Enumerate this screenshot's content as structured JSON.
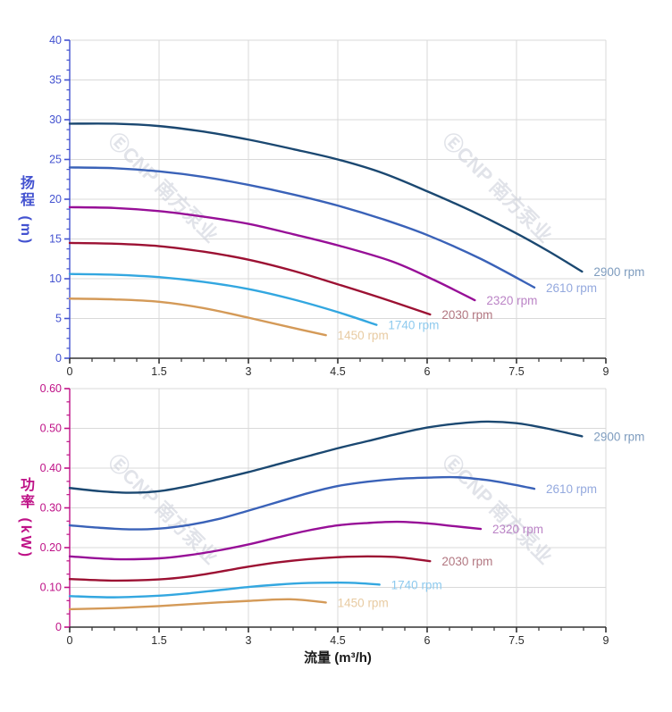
{
  "colors": {
    "grid": "#d9d9d9",
    "x_axis": "#333333",
    "x_tick_label": "#2b2b2b"
  },
  "watermark": {
    "text": "ⒺCNP 南方泵业",
    "color": "#c9cdd8",
    "positions": [
      [
        [
          120,
          158
        ],
        [
          494,
          158
        ]
      ],
      [
        [
          120,
          518
        ],
        [
          494,
          518
        ]
      ]
    ]
  },
  "chart_data": [
    {
      "type": "line",
      "title": "",
      "ylabel": "扬程 (m)",
      "xlim": [
        0,
        9
      ],
      "ylim": [
        0,
        40
      ],
      "x_ticks": [
        0,
        1.5,
        3,
        4.5,
        6,
        7.5,
        9
      ],
      "x_minor_step": 0.375,
      "y_ticks": [
        0,
        5,
        10,
        15,
        20,
        25,
        30,
        35,
        40
      ],
      "y_minor_step": 1.25,
      "y_decimals": 0,
      "axis_color": "#4352d0",
      "grid": true,
      "legend_position": "curve-ends",
      "series": [
        {
          "name": "2900 rpm",
          "color": "#1b4871",
          "label_color": "#7e9cbe",
          "points": [
            [
              0,
              29.5
            ],
            [
              0.75,
              29.5
            ],
            [
              1.5,
              29.2
            ],
            [
              2.25,
              28.5
            ],
            [
              3,
              27.5
            ],
            [
              3.75,
              26.3
            ],
            [
              4.5,
              25
            ],
            [
              5.25,
              23.3
            ],
            [
              6,
              21
            ],
            [
              6.75,
              18.5
            ],
            [
              7.5,
              15.7
            ],
            [
              8.05,
              13.4
            ],
            [
              8.6,
              10.9
            ]
          ]
        },
        {
          "name": "2610 rpm",
          "color": "#3a62b8",
          "label_color": "#94a9de",
          "points": [
            [
              0,
              24
            ],
            [
              0.75,
              23.9
            ],
            [
              1.5,
              23.5
            ],
            [
              2.25,
              22.8
            ],
            [
              3,
              21.8
            ],
            [
              3.75,
              20.6
            ],
            [
              4.5,
              19.2
            ],
            [
              5.25,
              17.5
            ],
            [
              6,
              15.5
            ],
            [
              6.9,
              12.5
            ],
            [
              7.8,
              8.9
            ]
          ]
        },
        {
          "name": "2320 rpm",
          "color": "#970f97",
          "label_color": "#bb84c6",
          "points": [
            [
              0,
              19
            ],
            [
              0.75,
              18.9
            ],
            [
              1.5,
              18.5
            ],
            [
              2.25,
              17.8
            ],
            [
              3,
              16.9
            ],
            [
              3.75,
              15.6
            ],
            [
              4.5,
              14.2
            ],
            [
              5.4,
              12.2
            ],
            [
              6.1,
              9.9
            ],
            [
              6.8,
              7.3
            ]
          ]
        },
        {
          "name": "2030 rpm",
          "color": "#9c1133",
          "label_color": "#b27781",
          "points": [
            [
              0,
              14.5
            ],
            [
              0.75,
              14.4
            ],
            [
              1.5,
              14.1
            ],
            [
              2.25,
              13.4
            ],
            [
              3,
              12.4
            ],
            [
              3.75,
              11
            ],
            [
              4.5,
              9.3
            ],
            [
              5.3,
              7.4
            ],
            [
              6.05,
              5.5
            ]
          ]
        },
        {
          "name": "1740 rpm",
          "color": "#33a7e0",
          "label_color": "#8ecaee",
          "points": [
            [
              0,
              10.6
            ],
            [
              0.75,
              10.5
            ],
            [
              1.5,
              10.2
            ],
            [
              2.25,
              9.6
            ],
            [
              3,
              8.7
            ],
            [
              3.75,
              7.4
            ],
            [
              4.5,
              5.8
            ],
            [
              5.15,
              4.2
            ]
          ]
        },
        {
          "name": "1450 rpm",
          "color": "#d49a58",
          "label_color": "#e8cba2",
          "points": [
            [
              0,
              7.5
            ],
            [
              0.75,
              7.4
            ],
            [
              1.5,
              7.1
            ],
            [
              2.25,
              6.3
            ],
            [
              3,
              5.1
            ],
            [
              3.7,
              3.9
            ],
            [
              4.3,
              2.9
            ]
          ]
        }
      ]
    },
    {
      "type": "line",
      "title": "",
      "ylabel": "功率 (kW)",
      "xlabel": "流量 (m³/h)",
      "xlim": [
        0,
        9
      ],
      "ylim": [
        0,
        0.6
      ],
      "x_ticks": [
        0,
        1.5,
        3,
        4.5,
        6,
        7.5,
        9
      ],
      "x_minor_step": 0.375,
      "y_ticks": [
        0,
        0.1,
        0.2,
        0.3,
        0.4,
        0.5,
        0.6
      ],
      "y_minor_step": 0.0333333,
      "y_decimals": 2,
      "axis_color": "#bf1287",
      "grid": true,
      "legend_position": "curve-ends",
      "series": [
        {
          "name": "2900 rpm",
          "color": "#1b4871",
          "label_color": "#7e9cbe",
          "points": [
            [
              0,
              0.35
            ],
            [
              0.5,
              0.342
            ],
            [
              1,
              0.338
            ],
            [
              1.5,
              0.342
            ],
            [
              2,
              0.355
            ],
            [
              2.5,
              0.372
            ],
            [
              3,
              0.39
            ],
            [
              3.5,
              0.41
            ],
            [
              4,
              0.43
            ],
            [
              4.5,
              0.45
            ],
            [
              5,
              0.468
            ],
            [
              5.5,
              0.486
            ],
            [
              6,
              0.502
            ],
            [
              6.5,
              0.512
            ],
            [
              7,
              0.517
            ],
            [
              7.5,
              0.513
            ],
            [
              8,
              0.5
            ],
            [
              8.6,
              0.48
            ]
          ]
        },
        {
          "name": "2610 rpm",
          "color": "#3a62b8",
          "label_color": "#94a9de",
          "points": [
            [
              0,
              0.256
            ],
            [
              0.5,
              0.25
            ],
            [
              1,
              0.246
            ],
            [
              1.5,
              0.248
            ],
            [
              2,
              0.257
            ],
            [
              2.5,
              0.272
            ],
            [
              3,
              0.293
            ],
            [
              3.5,
              0.315
            ],
            [
              4,
              0.337
            ],
            [
              4.5,
              0.355
            ],
            [
              5,
              0.366
            ],
            [
              5.5,
              0.373
            ],
            [
              6,
              0.376
            ],
            [
              6.5,
              0.377
            ],
            [
              7,
              0.37
            ],
            [
              7.4,
              0.36
            ],
            [
              7.8,
              0.348
            ]
          ]
        },
        {
          "name": "2320 rpm",
          "color": "#970f97",
          "label_color": "#bb84c6",
          "points": [
            [
              0,
              0.178
            ],
            [
              0.75,
              0.171
            ],
            [
              1.5,
              0.173
            ],
            [
              2,
              0.181
            ],
            [
              2.5,
              0.193
            ],
            [
              3,
              0.208
            ],
            [
              3.5,
              0.226
            ],
            [
              4,
              0.243
            ],
            [
              4.5,
              0.256
            ],
            [
              5,
              0.262
            ],
            [
              5.5,
              0.265
            ],
            [
              6,
              0.261
            ],
            [
              6.45,
              0.254
            ],
            [
              6.9,
              0.247
            ]
          ]
        },
        {
          "name": "2030 rpm",
          "color": "#9c1133",
          "label_color": "#b27781",
          "points": [
            [
              0,
              0.121
            ],
            [
              0.75,
              0.117
            ],
            [
              1.5,
              0.12
            ],
            [
              2,
              0.127
            ],
            [
              2.5,
              0.139
            ],
            [
              3,
              0.152
            ],
            [
              3.5,
              0.163
            ],
            [
              4,
              0.171
            ],
            [
              4.5,
              0.176
            ],
            [
              5,
              0.178
            ],
            [
              5.5,
              0.176
            ],
            [
              6.05,
              0.166
            ]
          ]
        },
        {
          "name": "1740 rpm",
          "color": "#33a7e0",
          "label_color": "#8ecaee",
          "points": [
            [
              0,
              0.078
            ],
            [
              0.75,
              0.075
            ],
            [
              1.5,
              0.079
            ],
            [
              2,
              0.085
            ],
            [
              2.5,
              0.093
            ],
            [
              3,
              0.101
            ],
            [
              3.5,
              0.107
            ],
            [
              4,
              0.111
            ],
            [
              4.5,
              0.112
            ],
            [
              4.8,
              0.111
            ],
            [
              5.2,
              0.107
            ]
          ]
        },
        {
          "name": "1450 rpm",
          "color": "#d49a58",
          "label_color": "#e8cba2",
          "points": [
            [
              0,
              0.045
            ],
            [
              0.75,
              0.048
            ],
            [
              1.5,
              0.053
            ],
            [
              2.25,
              0.06
            ],
            [
              3,
              0.066
            ],
            [
              3.7,
              0.07
            ],
            [
              4.3,
              0.062
            ]
          ]
        }
      ]
    }
  ]
}
